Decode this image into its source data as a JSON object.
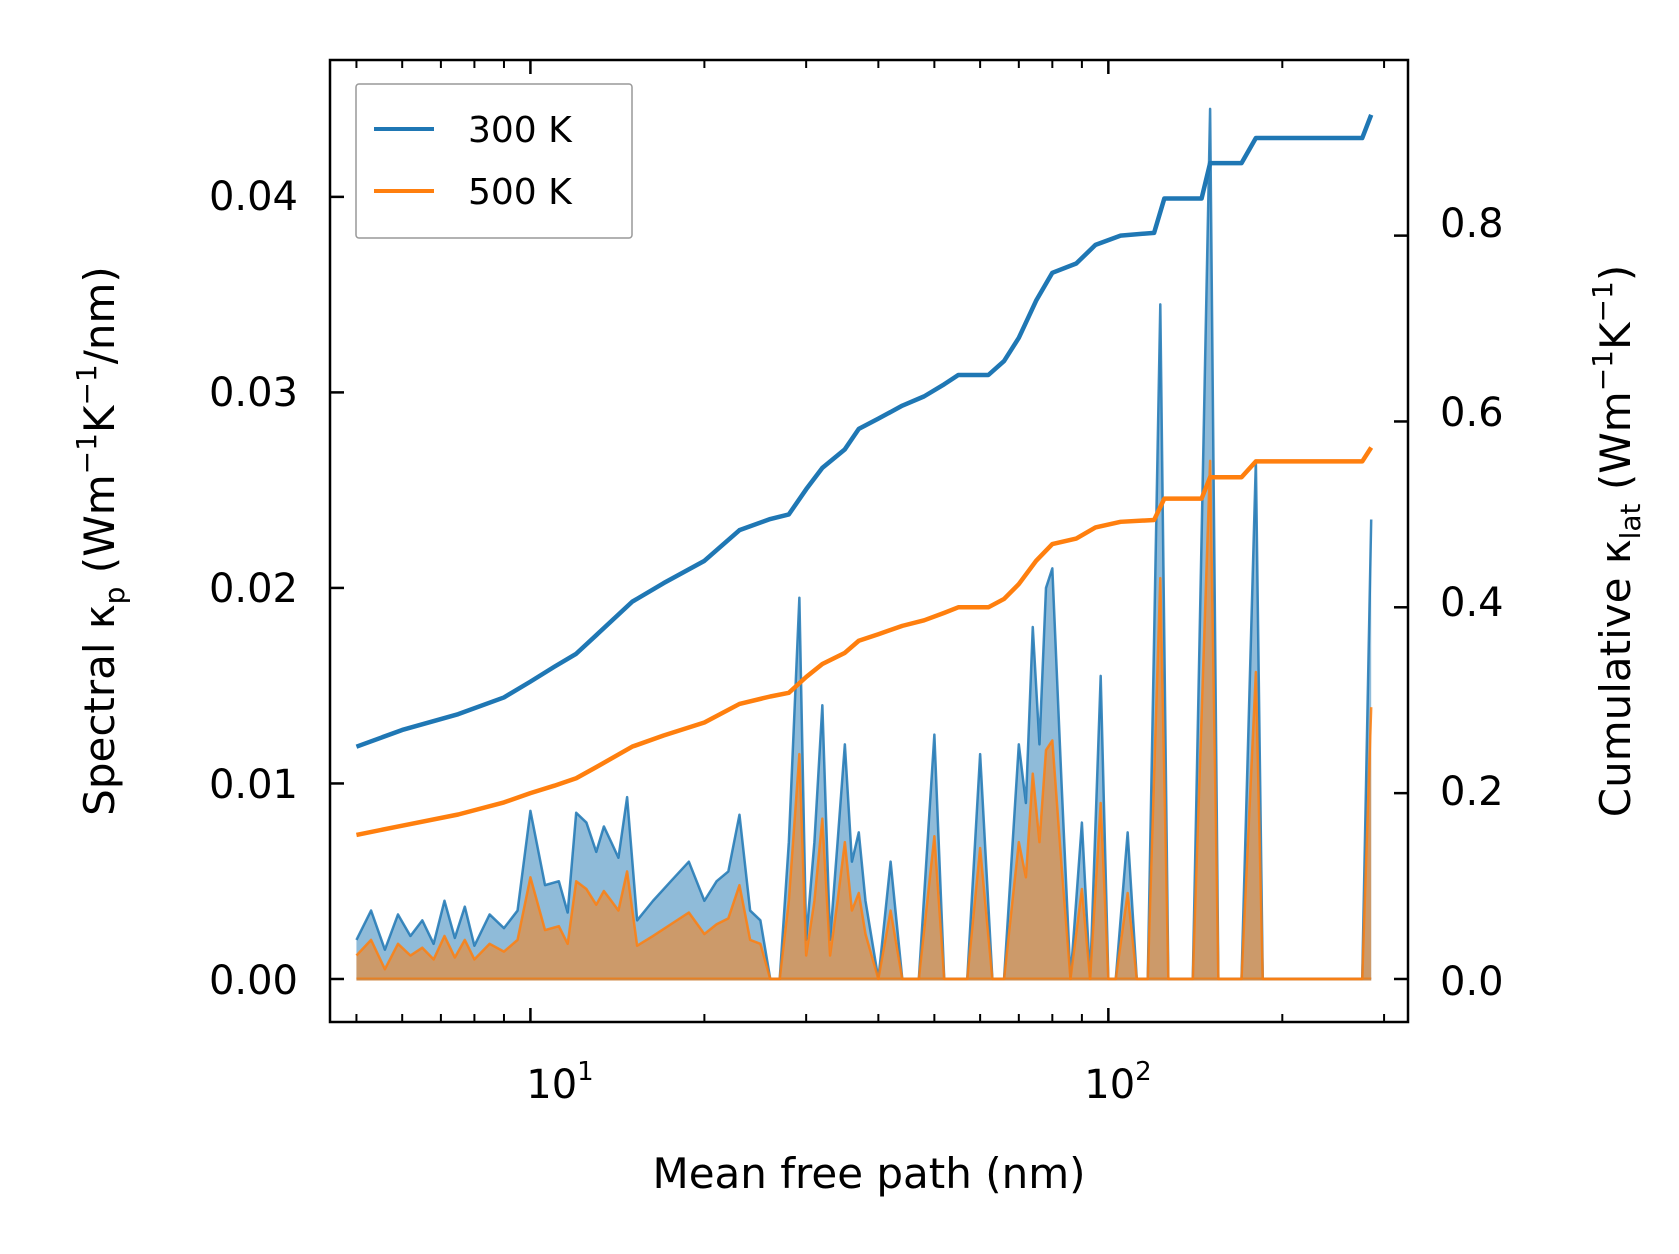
{
  "chart_data": {
    "type": "line",
    "title": "",
    "xlabel": "Mean free path (nm)",
    "ylabel_left": {
      "main": "Spectral κ",
      "sub": "p",
      "unit_open": " (Wm",
      "exp1": "−1",
      "unit_mid": "K",
      "exp2": "−1",
      "unit_close": "/nm)"
    },
    "ylabel_right": {
      "main": "Cumulative κ",
      "sub": "lat",
      "unit_open": " (Wm",
      "exp1": "−1",
      "unit_mid": "K",
      "exp2": "−1",
      "unit_close": ")"
    },
    "x_scale": "log",
    "xlim": [
      4.5,
      330
    ],
    "ylim_left": [
      -0.0022,
      0.047
    ],
    "ylim_right": [
      -0.0463,
      0.989
    ],
    "x_ticks": [
      {
        "base": "10",
        "exp": "1",
        "value": 10
      },
      {
        "base": "10",
        "exp": "2",
        "value": 100
      }
    ],
    "y_ticks_left": [
      {
        "label": "0.00",
        "value": 0
      },
      {
        "label": "0.01",
        "value": 0.01
      },
      {
        "label": "0.02",
        "value": 0.02
      },
      {
        "label": "0.03",
        "value": 0.03
      },
      {
        "label": "0.04",
        "value": 0.04
      }
    ],
    "y_ticks_right": [
      {
        "label": "0.0",
        "value": 0
      },
      {
        "label": "0.2",
        "value": 0.2
      },
      {
        "label": "0.4",
        "value": 0.4
      },
      {
        "label": "0.6",
        "value": 0.6
      },
      {
        "label": "0.8",
        "value": 0.8
      }
    ],
    "legend": {
      "placement": "top-left",
      "entries": [
        {
          "name": "300 K",
          "color": "#1f77b4"
        },
        {
          "name": "500 K",
          "color": "#ff7f0e"
        }
      ]
    },
    "spectral_series": [
      {
        "name": "300 K",
        "color": "#1f77b4",
        "points": [
          [
            5.0,
            0.002
          ],
          [
            5.3,
            0.0035
          ],
          [
            5.6,
            0.0015
          ],
          [
            5.9,
            0.0033
          ],
          [
            6.2,
            0.0022
          ],
          [
            6.5,
            0.003
          ],
          [
            6.8,
            0.0018
          ],
          [
            7.1,
            0.004
          ],
          [
            7.4,
            0.0021
          ],
          [
            7.7,
            0.0037
          ],
          [
            8.0,
            0.0017
          ],
          [
            8.5,
            0.0033
          ],
          [
            9.0,
            0.0026
          ],
          [
            9.5,
            0.0035
          ],
          [
            10.0,
            0.0086
          ],
          [
            10.6,
            0.0048
          ],
          [
            11.2,
            0.005
          ],
          [
            11.6,
            0.0034
          ],
          [
            12.0,
            0.0085
          ],
          [
            12.5,
            0.008
          ],
          [
            13.0,
            0.0065
          ],
          [
            13.4,
            0.0078
          ],
          [
            13.8,
            0.007
          ],
          [
            14.2,
            0.0062
          ],
          [
            14.7,
            0.0093
          ],
          [
            15.3,
            0.003
          ],
          [
            16.3,
            0.004
          ],
          [
            17.5,
            0.005
          ],
          [
            18.8,
            0.006
          ],
          [
            20.0,
            0.004
          ],
          [
            21.0,
            0.005
          ],
          [
            22.0,
            0.0055
          ],
          [
            23.0,
            0.0084
          ],
          [
            24.0,
            0.0035
          ],
          [
            25.0,
            0.003
          ],
          [
            26.0,
            0.0
          ],
          [
            27.0,
            0.0
          ],
          [
            28.0,
            0.007
          ],
          [
            29.2,
            0.0195
          ],
          [
            30.0,
            0.002
          ],
          [
            31.0,
            0.007
          ],
          [
            32.0,
            0.014
          ],
          [
            33.0,
            0.002
          ],
          [
            34.0,
            0.007
          ],
          [
            35.0,
            0.012
          ],
          [
            36.0,
            0.006
          ],
          [
            37.0,
            0.0075
          ],
          [
            38.0,
            0.004
          ],
          [
            40.0,
            0.0
          ],
          [
            42.0,
            0.006
          ],
          [
            44.0,
            0.0
          ],
          [
            47.0,
            0.0
          ],
          [
            50.0,
            0.0125
          ],
          [
            52.0,
            0.0
          ],
          [
            57.0,
            0.0
          ],
          [
            60.0,
            0.0115
          ],
          [
            63.0,
            0.0
          ],
          [
            66.0,
            0.0
          ],
          [
            70.0,
            0.012
          ],
          [
            72.0,
            0.009
          ],
          [
            74.0,
            0.018
          ],
          [
            76.0,
            0.012
          ],
          [
            78.0,
            0.02
          ],
          [
            80.0,
            0.021
          ],
          [
            83.0,
            0.01
          ],
          [
            86.0,
            0.0
          ],
          [
            90.0,
            0.008
          ],
          [
            93.0,
            0.0
          ],
          [
            97.0,
            0.0155
          ],
          [
            100.0,
            0.0
          ],
          [
            103.0,
            0.0
          ],
          [
            108.0,
            0.0075
          ],
          [
            112.0,
            0.0
          ],
          [
            117.0,
            0.0
          ],
          [
            123.0,
            0.0345
          ],
          [
            127.0,
            0.0
          ],
          [
            140.0,
            0.0
          ],
          [
            150.0,
            0.0445
          ],
          [
            155.0,
            0.0
          ],
          [
            170.0,
            0.0
          ],
          [
            180.0,
            0.0265
          ],
          [
            185.0,
            0.0
          ],
          [
            250.0,
            0.0
          ],
          [
            275.0,
            0.0
          ],
          [
            285.0,
            0.0235
          ]
        ]
      },
      {
        "name": "500 K",
        "color": "#ff7f0e",
        "points": [
          [
            5.0,
            0.0012
          ],
          [
            5.3,
            0.002
          ],
          [
            5.6,
            0.0005
          ],
          [
            5.9,
            0.0018
          ],
          [
            6.2,
            0.0012
          ],
          [
            6.5,
            0.0016
          ],
          [
            6.8,
            0.001
          ],
          [
            7.1,
            0.0022
          ],
          [
            7.4,
            0.0011
          ],
          [
            7.7,
            0.002
          ],
          [
            8.0,
            0.001
          ],
          [
            8.5,
            0.0018
          ],
          [
            9.0,
            0.0014
          ],
          [
            9.5,
            0.002
          ],
          [
            10.0,
            0.0052
          ],
          [
            10.6,
            0.0025
          ],
          [
            11.2,
            0.0027
          ],
          [
            11.6,
            0.0018
          ],
          [
            12.0,
            0.005
          ],
          [
            12.5,
            0.0046
          ],
          [
            13.0,
            0.0038
          ],
          [
            13.4,
            0.0045
          ],
          [
            13.8,
            0.004
          ],
          [
            14.2,
            0.0035
          ],
          [
            14.7,
            0.0055
          ],
          [
            15.3,
            0.0017
          ],
          [
            16.3,
            0.0022
          ],
          [
            17.5,
            0.0028
          ],
          [
            18.8,
            0.0034
          ],
          [
            20.0,
            0.0023
          ],
          [
            21.0,
            0.0028
          ],
          [
            22.0,
            0.0031
          ],
          [
            23.0,
            0.0048
          ],
          [
            24.0,
            0.002
          ],
          [
            25.0,
            0.0018
          ],
          [
            26.0,
            0.0
          ],
          [
            27.0,
            0.0
          ],
          [
            28.0,
            0.004
          ],
          [
            29.2,
            0.0115
          ],
          [
            30.0,
            0.0012
          ],
          [
            31.0,
            0.004
          ],
          [
            32.0,
            0.0082
          ],
          [
            33.0,
            0.0012
          ],
          [
            34.0,
            0.004
          ],
          [
            35.0,
            0.007
          ],
          [
            36.0,
            0.0035
          ],
          [
            37.0,
            0.0044
          ],
          [
            38.0,
            0.0023
          ],
          [
            40.0,
            0.0
          ],
          [
            42.0,
            0.0035
          ],
          [
            44.0,
            0.0
          ],
          [
            47.0,
            0.0
          ],
          [
            50.0,
            0.0073
          ],
          [
            52.0,
            0.0
          ],
          [
            57.0,
            0.0
          ],
          [
            60.0,
            0.0067
          ],
          [
            63.0,
            0.0
          ],
          [
            66.0,
            0.0
          ],
          [
            70.0,
            0.007
          ],
          [
            72.0,
            0.0052
          ],
          [
            74.0,
            0.0105
          ],
          [
            76.0,
            0.007
          ],
          [
            78.0,
            0.0117
          ],
          [
            80.0,
            0.0122
          ],
          [
            83.0,
            0.0058
          ],
          [
            86.0,
            0.0
          ],
          [
            90.0,
            0.0046
          ],
          [
            93.0,
            0.0
          ],
          [
            97.0,
            0.009
          ],
          [
            100.0,
            0.0
          ],
          [
            103.0,
            0.0
          ],
          [
            108.0,
            0.0044
          ],
          [
            112.0,
            0.0
          ],
          [
            117.0,
            0.0
          ],
          [
            123.0,
            0.0205
          ],
          [
            127.0,
            0.0
          ],
          [
            140.0,
            0.0
          ],
          [
            150.0,
            0.0265
          ],
          [
            155.0,
            0.0
          ],
          [
            170.0,
            0.0
          ],
          [
            180.0,
            0.0157
          ],
          [
            185.0,
            0.0
          ],
          [
            250.0,
            0.0
          ],
          [
            275.0,
            0.0
          ],
          [
            285.0,
            0.0139
          ]
        ]
      }
    ],
    "cumulative_series": [
      {
        "name": "300 K",
        "color": "#1f77b4",
        "points": [
          [
            5.0,
            0.25
          ],
          [
            6.0,
            0.268
          ],
          [
            7.5,
            0.285
          ],
          [
            9.0,
            0.303
          ],
          [
            10.0,
            0.32
          ],
          [
            11.0,
            0.336
          ],
          [
            12.0,
            0.35
          ],
          [
            13.0,
            0.37
          ],
          [
            15.0,
            0.406
          ],
          [
            17.0,
            0.426
          ],
          [
            20.0,
            0.45
          ],
          [
            23.0,
            0.483
          ],
          [
            26.0,
            0.495
          ],
          [
            28.0,
            0.5
          ],
          [
            30.0,
            0.527
          ],
          [
            32.0,
            0.55
          ],
          [
            35.0,
            0.57
          ],
          [
            37.0,
            0.592
          ],
          [
            40.0,
            0.603
          ],
          [
            44.0,
            0.617
          ],
          [
            48.0,
            0.627
          ],
          [
            52.0,
            0.64
          ],
          [
            55.0,
            0.65
          ],
          [
            62.0,
            0.65
          ],
          [
            66.0,
            0.665
          ],
          [
            70.0,
            0.69
          ],
          [
            75.0,
            0.73
          ],
          [
            80.0,
            0.76
          ],
          [
            88.0,
            0.77
          ],
          [
            95.0,
            0.79
          ],
          [
            105.0,
            0.8
          ],
          [
            120.0,
            0.803
          ],
          [
            125.0,
            0.84
          ],
          [
            145.0,
            0.84
          ],
          [
            150.0,
            0.878
          ],
          [
            170.0,
            0.878
          ],
          [
            180.0,
            0.905
          ],
          [
            275.0,
            0.905
          ],
          [
            285.0,
            0.93
          ]
        ]
      },
      {
        "name": "500 K",
        "color": "#ff7f0e",
        "points": [
          [
            5.0,
            0.155
          ],
          [
            6.0,
            0.165
          ],
          [
            7.5,
            0.177
          ],
          [
            9.0,
            0.19
          ],
          [
            10.0,
            0.2
          ],
          [
            11.0,
            0.208
          ],
          [
            12.0,
            0.216
          ],
          [
            13.0,
            0.228
          ],
          [
            15.0,
            0.25
          ],
          [
            17.0,
            0.262
          ],
          [
            20.0,
            0.276
          ],
          [
            23.0,
            0.296
          ],
          [
            26.0,
            0.304
          ],
          [
            28.0,
            0.308
          ],
          [
            30.0,
            0.325
          ],
          [
            32.0,
            0.339
          ],
          [
            35.0,
            0.351
          ],
          [
            37.0,
            0.364
          ],
          [
            40.0,
            0.371
          ],
          [
            44.0,
            0.38
          ],
          [
            48.0,
            0.386
          ],
          [
            52.0,
            0.394
          ],
          [
            55.0,
            0.4
          ],
          [
            62.0,
            0.4
          ],
          [
            66.0,
            0.409
          ],
          [
            70.0,
            0.425
          ],
          [
            75.0,
            0.45
          ],
          [
            80.0,
            0.468
          ],
          [
            88.0,
            0.474
          ],
          [
            95.0,
            0.486
          ],
          [
            105.0,
            0.492
          ],
          [
            120.0,
            0.494
          ],
          [
            125.0,
            0.517
          ],
          [
            145.0,
            0.517
          ],
          [
            150.0,
            0.54
          ],
          [
            170.0,
            0.54
          ],
          [
            180.0,
            0.557
          ],
          [
            275.0,
            0.557
          ],
          [
            285.0,
            0.572
          ]
        ]
      }
    ]
  }
}
